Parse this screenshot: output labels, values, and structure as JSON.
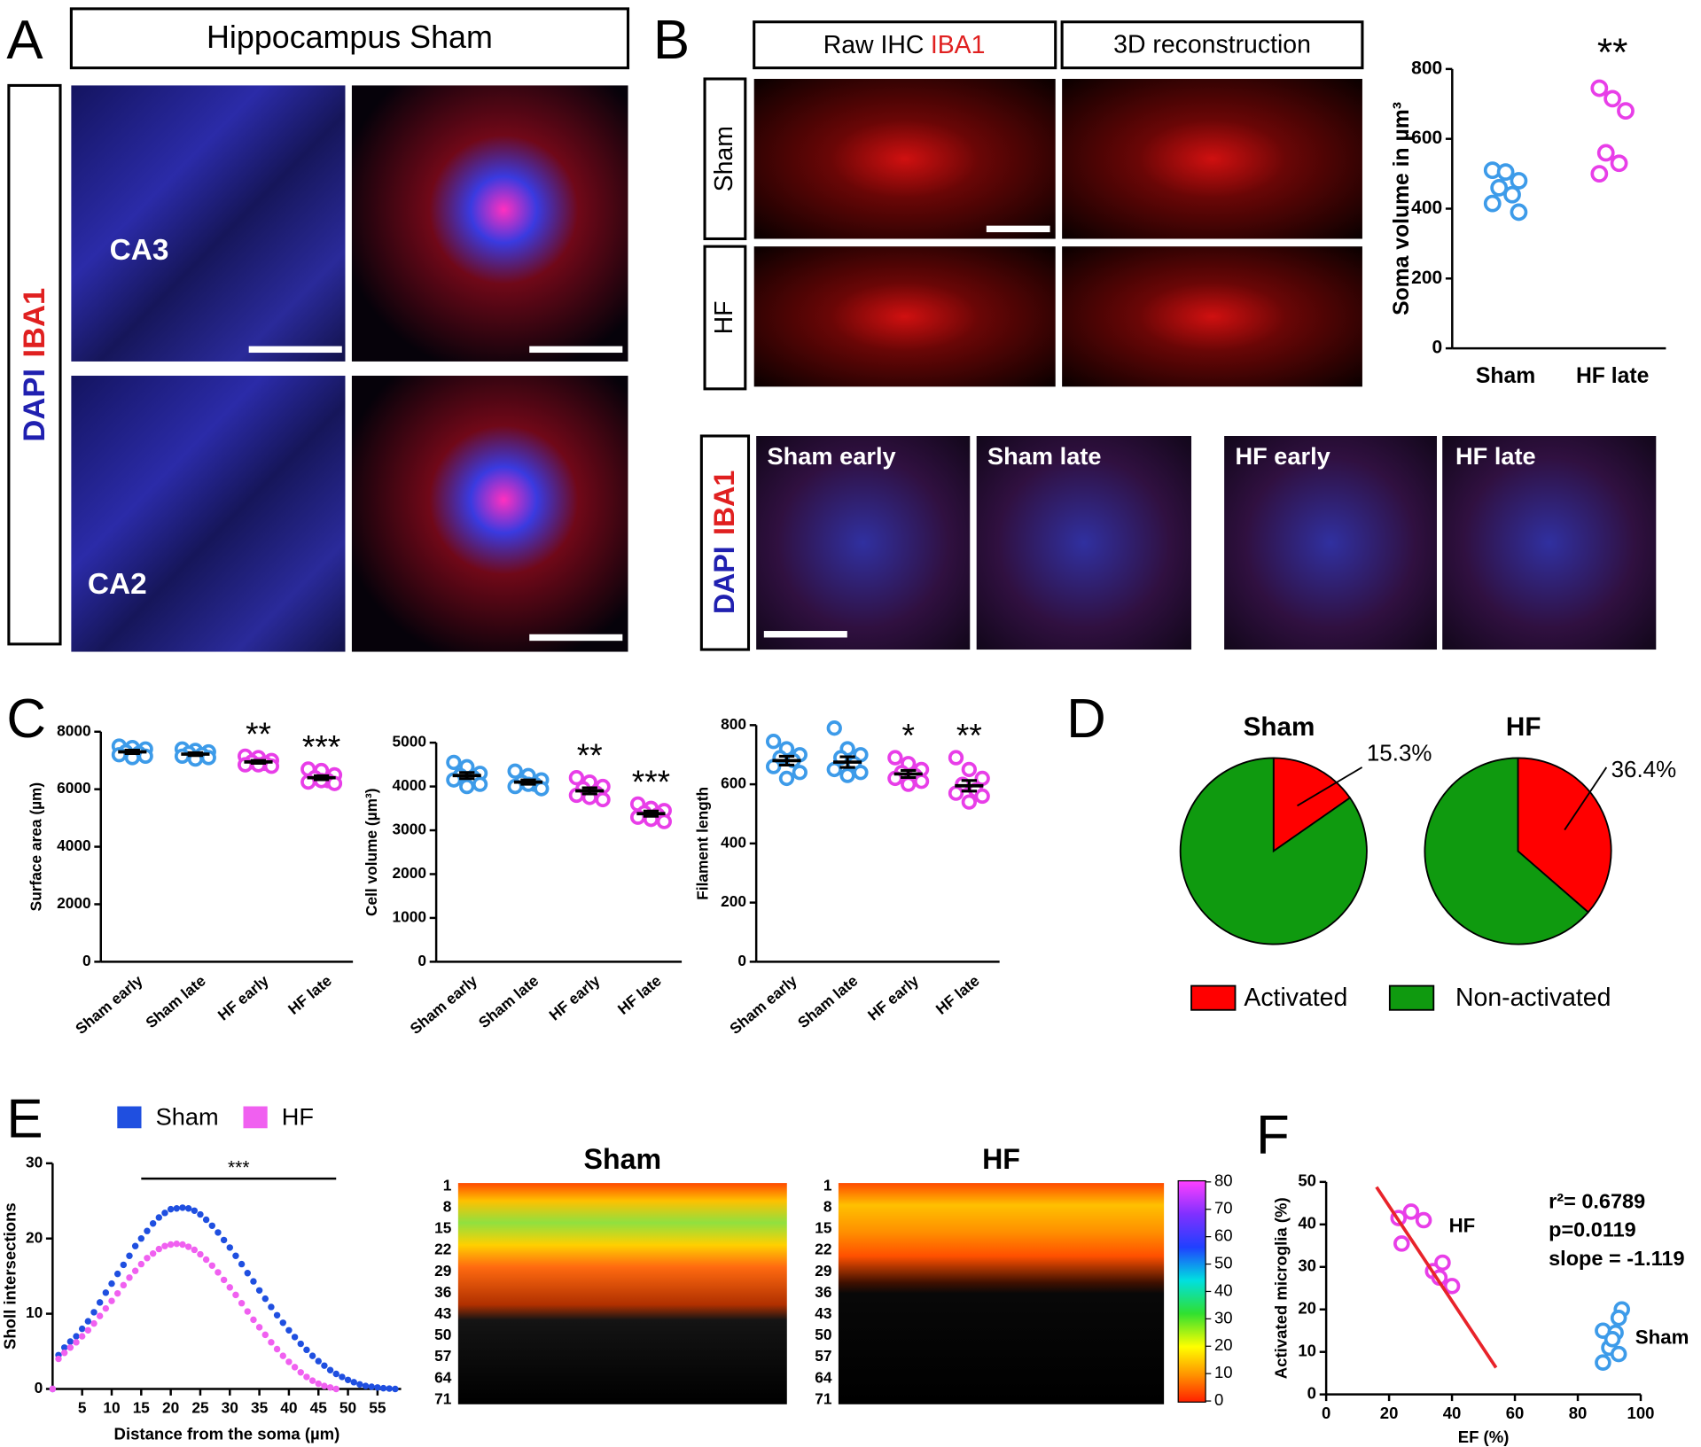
{
  "panel_labels": [
    "A",
    "B",
    "C",
    "D",
    "E",
    "F"
  ],
  "panel_a": {
    "title": "Hippocampus Sham",
    "stain": [
      "DAPI",
      "IBA1"
    ],
    "regions": [
      "CA3",
      "CA2"
    ]
  },
  "panel_b": {
    "header_raw": "Raw IHC",
    "header_stain": "IBA1",
    "header_3d": "3D reconstruction",
    "rows": [
      "Sham",
      "HF"
    ],
    "stain": [
      "DAPI",
      "IBA1"
    ],
    "conditions": [
      "Sham early",
      "Sham late",
      "HF early",
      "HF late"
    ]
  },
  "panel_e_heatmaps": {
    "titles": [
      "Sham",
      "HF"
    ],
    "row_labels": [
      1,
      8,
      15,
      22,
      29,
      36,
      43,
      50,
      57,
      64,
      71
    ],
    "colorbar_ticks": [
      0,
      10,
      20,
      30,
      40,
      50,
      60,
      70,
      80
    ]
  },
  "chart_data": [
    {
      "type": "dot",
      "ylabel": "Soma volume in µm³",
      "categories": [
        "Sham",
        "HF late"
      ],
      "colors": [
        "#3d9be9",
        "#e83ee8"
      ],
      "points": [
        [
          510,
          505,
          480,
          460,
          440,
          415,
          390
        ],
        [
          745,
          715,
          680,
          560,
          530,
          500
        ]
      ],
      "significance": [
        null,
        "**"
      ],
      "ylim": [
        0,
        800
      ],
      "yticks": [
        0,
        200,
        400,
        600,
        800
      ]
    },
    {
      "type": "dot",
      "ylabel": "Surface area (µm)",
      "categories": [
        "Sham early",
        "Sham late",
        "HF early",
        "HF late"
      ],
      "colors": [
        "#3d9be9",
        "#3d9be9",
        "#e83ee8",
        "#e83ee8"
      ],
      "points": [
        [
          7500,
          7450,
          7400,
          7300,
          7250,
          7200,
          7150,
          7100
        ],
        [
          7400,
          7350,
          7300,
          7250,
          7200,
          7150,
          7100,
          7050
        ],
        [
          7150,
          7100,
          7000,
          6950,
          6900,
          6850,
          6800,
          6850
        ],
        [
          6700,
          6650,
          6500,
          6400,
          6300,
          6250,
          6200,
          6300
        ]
      ],
      "means": [
        7300,
        7220,
        6950,
        6400
      ],
      "errors": [
        60,
        50,
        50,
        70
      ],
      "significance": [
        null,
        null,
        "**",
        "***"
      ],
      "ylim": [
        0,
        8000
      ],
      "yticks": [
        0,
        2000,
        4000,
        6000,
        8000
      ]
    },
    {
      "type": "dot",
      "ylabel": "Cell volume (µm³)",
      "categories": [
        "Sham early",
        "Sham late",
        "HF early",
        "HF late"
      ],
      "colors": [
        "#3d9be9",
        "#3d9be9",
        "#e83ee8",
        "#e83ee8"
      ],
      "points": [
        [
          4550,
          4450,
          4300,
          4250,
          4200,
          4150,
          4050,
          4000
        ],
        [
          4350,
          4250,
          4150,
          4100,
          4050,
          4000,
          3950,
          4050
        ],
        [
          4200,
          4100,
          4000,
          3950,
          3850,
          3800,
          3700,
          3750
        ],
        [
          3600,
          3500,
          3450,
          3400,
          3350,
          3300,
          3200,
          3250
        ]
      ],
      "means": [
        4250,
        4100,
        3900,
        3380
      ],
      "errors": [
        70,
        50,
        70,
        60
      ],
      "significance": [
        null,
        null,
        "**",
        "***"
      ],
      "ylim": [
        0,
        5000
      ],
      "yticks": [
        0,
        1000,
        2000,
        3000,
        4000,
        5000
      ]
    },
    {
      "type": "dot",
      "ylabel": "Filament length",
      "categories": [
        "Sham early",
        "Sham late",
        "HF early",
        "HF late"
      ],
      "colors": [
        "#3d9be9",
        "#3d9be9",
        "#e83ee8",
        "#e83ee8"
      ],
      "points": [
        [
          745,
          720,
          700,
          690,
          680,
          660,
          640,
          620
        ],
        [
          790,
          720,
          700,
          690,
          670,
          650,
          640,
          630
        ],
        [
          690,
          670,
          650,
          640,
          630,
          620,
          610,
          600
        ],
        [
          690,
          650,
          620,
          600,
          580,
          570,
          560,
          540
        ]
      ],
      "means": [
        680,
        675,
        635,
        595
      ],
      "errors": [
        15,
        18,
        12,
        18
      ],
      "significance": [
        null,
        null,
        "*",
        "**"
      ],
      "ylim": [
        0,
        800
      ],
      "yticks": [
        0,
        200,
        400,
        600,
        800
      ]
    },
    {
      "type": "pie",
      "categories": [
        "Activated",
        "Non-activated"
      ],
      "colors": [
        "#ff0000",
        "#0f9a0f"
      ],
      "series": [
        {
          "name": "Sham",
          "values": [
            15.3,
            84.7
          ],
          "value_labels": [
            "15.3%",
            null
          ]
        },
        {
          "name": "HF",
          "values": [
            36.4,
            63.6
          ],
          "value_labels": [
            "36.4%",
            null
          ]
        }
      ]
    },
    {
      "type": "line",
      "xlabel": "Distance from the soma (µm)",
      "ylabel": "Sholl intersections",
      "x": [
        0,
        1,
        2,
        3,
        4,
        5,
        6,
        7,
        8,
        9,
        10,
        11,
        12,
        13,
        14,
        15,
        16,
        17,
        18,
        19,
        20,
        21,
        22,
        23,
        24,
        25,
        26,
        27,
        28,
        29,
        30,
        31,
        32,
        33,
        34,
        35,
        36,
        37,
        38,
        39,
        40,
        41,
        42,
        43,
        44,
        45,
        46,
        47,
        48,
        49,
        50,
        51,
        52,
        53,
        54,
        55,
        56,
        57,
        58
      ],
      "series": [
        {
          "name": "Sham",
          "color": "#1f4fe0",
          "values": [
            0,
            4.5,
            5.5,
            6.3,
            7,
            8,
            9,
            10.2,
            11.5,
            12.8,
            14,
            15.3,
            16.5,
            17.7,
            19,
            20,
            21,
            22,
            22.8,
            23.4,
            23.9,
            24,
            24.1,
            24,
            23.7,
            23.2,
            22.5,
            21.7,
            20.8,
            19.8,
            18.8,
            17.7,
            16.6,
            15.4,
            14.3,
            13.1,
            12,
            10.9,
            9.8,
            8.8,
            7.8,
            6.9,
            6,
            5.2,
            4.4,
            3.7,
            3.1,
            2.5,
            2,
            1.6,
            1.2,
            0.9,
            0.6,
            0.4,
            0.3,
            0.2,
            0.1,
            0.05,
            0
          ]
        },
        {
          "name": "HF",
          "color": "#f060f0",
          "values": [
            0,
            4,
            4.8,
            5.5,
            6.2,
            7,
            7.8,
            8.7,
            9.7,
            10.7,
            11.7,
            12.7,
            13.8,
            14.8,
            15.7,
            16.6,
            17.4,
            18,
            18.6,
            19,
            19.2,
            19.3,
            19.2,
            18.9,
            18.5,
            17.9,
            17.2,
            16.4,
            15.5,
            14.5,
            13.5,
            12.5,
            11.4,
            10.3,
            9.2,
            8.2,
            7.2,
            6.2,
            5.3,
            4.4,
            3.6,
            2.9,
            2.2,
            1.6,
            1.1,
            0.7,
            0.4,
            0.2,
            0,
            null,
            null,
            null,
            null,
            null,
            null,
            null,
            null,
            null,
            null
          ]
        }
      ],
      "significance": {
        "label": "***",
        "from": 15,
        "to": 48
      },
      "xlim": [
        0,
        59
      ],
      "xticks": [
        5,
        10,
        15,
        20,
        25,
        30,
        35,
        40,
        45,
        50,
        55
      ],
      "ylim": [
        0,
        30
      ],
      "yticks": [
        0,
        10,
        20,
        30
      ]
    },
    {
      "type": "scatter",
      "xlabel": "EF (%)",
      "ylabel": "Activated microglia (%)",
      "series": [
        {
          "name": "HF",
          "color": "#e83ee8",
          "x": [
            23,
            27,
            31,
            24,
            34,
            37,
            36,
            40
          ],
          "values": [
            41.5,
            43,
            41,
            35.5,
            29,
            31,
            27.5,
            25.5
          ]
        },
        {
          "name": "Sham",
          "color": "#3d9be9",
          "x": [
            88,
            92,
            94,
            93,
            90,
            91,
            93,
            88
          ],
          "values": [
            15,
            14.5,
            20,
            18,
            11,
            13,
            9.5,
            7.5
          ]
        },
        {
          "color": "#e8232a",
          "line": true,
          "x": [
            16,
            54
          ],
          "values": [
            48.8,
            6.3
          ]
        }
      ],
      "annotations": [
        "r²= 0.6789",
        "p=0.0119",
        "slope = -1.119"
      ],
      "xlim": [
        0,
        100
      ],
      "xticks": [
        0,
        20,
        40,
        60,
        80,
        100
      ],
      "ylim": [
        0,
        50
      ],
      "yticks": [
        0,
        10,
        20,
        30,
        40,
        50
      ]
    }
  ]
}
